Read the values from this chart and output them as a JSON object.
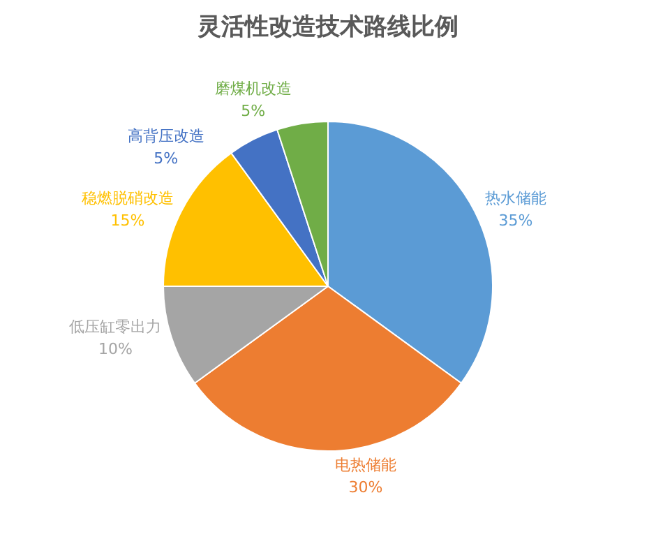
{
  "chart_data": {
    "type": "pie",
    "title": "灵活性改造技术路线比例",
    "categories": [
      "热水储能",
      "电热储能",
      "低压缸零出力",
      "稳燃脱硝改造",
      "高背压改造",
      "磨煤机改造"
    ],
    "values": [
      35,
      30,
      10,
      15,
      5,
      5
    ],
    "value_labels": [
      "35%",
      "30%",
      "10%",
      "15%",
      "5%",
      "5%"
    ],
    "colors": [
      "#5b9bd5",
      "#ed7d31",
      "#a5a5a5",
      "#ffc000",
      "#4472c4",
      "#70ad47"
    ],
    "legend": false
  }
}
